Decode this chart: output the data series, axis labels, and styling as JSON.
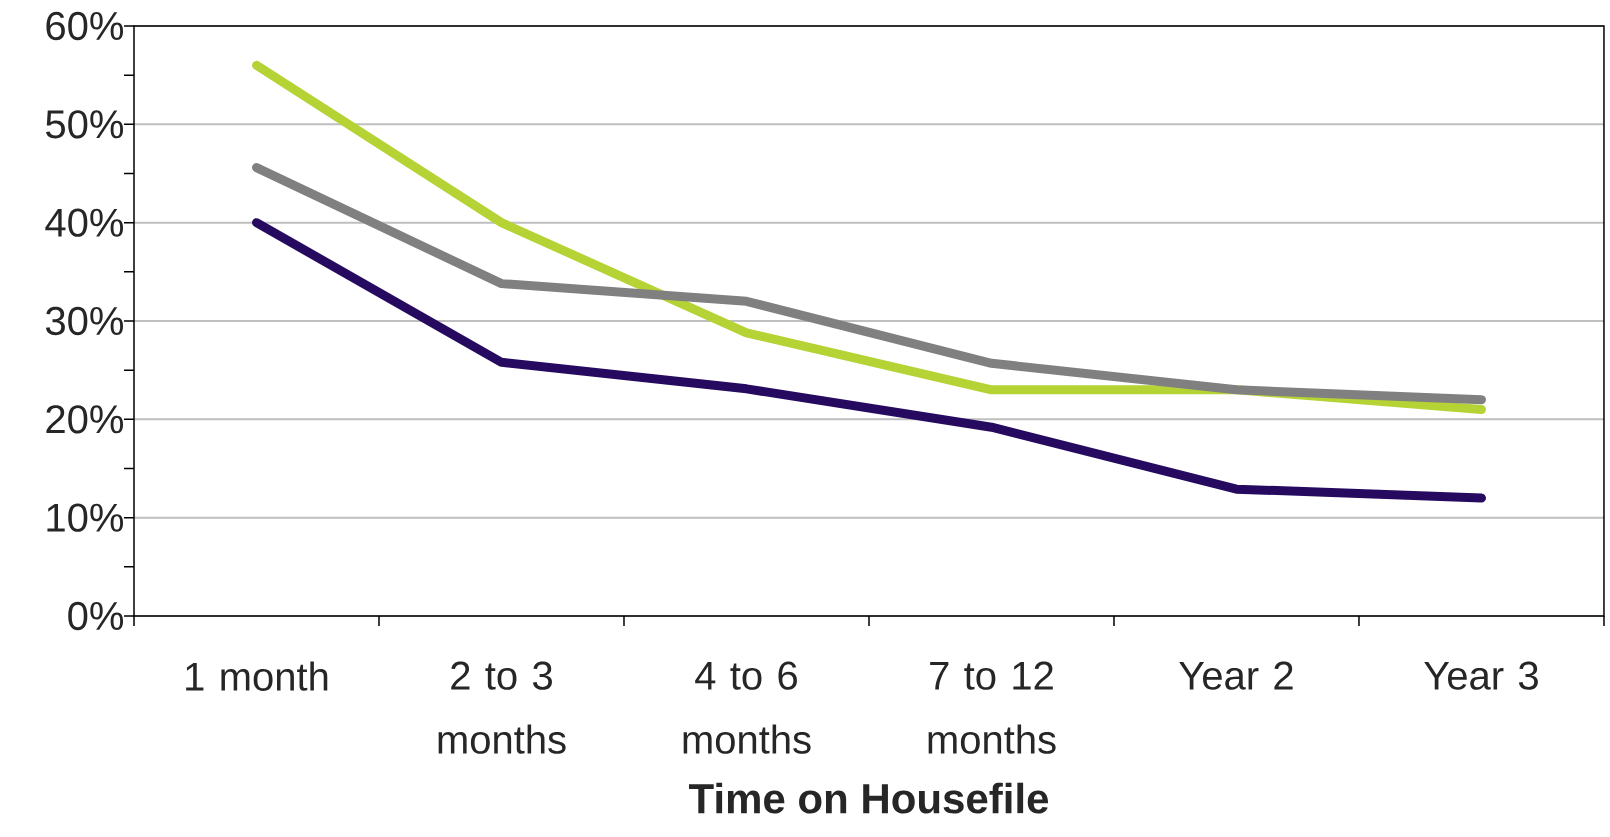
{
  "chart_data": {
    "type": "line",
    "xlabel": "Time on Housefile",
    "categories": [
      "1 month",
      "2 to 3 months",
      "4 to 6 months",
      "7 to 12 months",
      "Year 2",
      "Year 3"
    ],
    "series": [
      {
        "color": "#b5d334",
        "values": [
          56,
          40,
          28.8,
          23,
          23,
          21
        ]
      },
      {
        "color": "#808080",
        "values": [
          45.6,
          33.8,
          32,
          25.7,
          23,
          22
        ]
      },
      {
        "color": "#250a60",
        "values": [
          40,
          25.8,
          23.1,
          19.2,
          12.9,
          12
        ]
      }
    ],
    "ylim": [
      0,
      60
    ],
    "yticks": [
      {
        "value": 0,
        "label": "0%"
      },
      {
        "value": 10,
        "label": "10%"
      },
      {
        "value": 20,
        "label": "20%"
      },
      {
        "value": 30,
        "label": "30%"
      },
      {
        "value": 40,
        "label": "40%"
      },
      {
        "value": 50,
        "label": "50%"
      },
      {
        "value": 60,
        "label": "60%"
      }
    ],
    "grid": "y",
    "marker": "none",
    "line_style": "solid"
  }
}
